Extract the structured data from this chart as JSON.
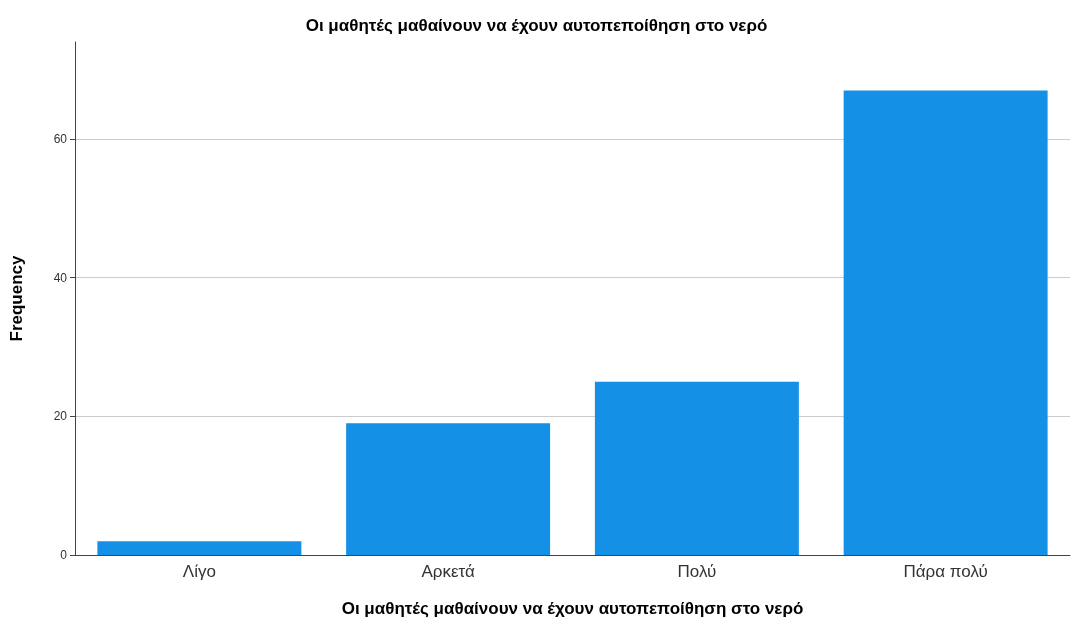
{
  "chart_data": {
    "type": "bar",
    "title": "Οι μαθητές μαθαίνουν να έχουν αυτοπεποίθηση στο νερό",
    "xlabel": "Οι μαθητές μαθαίνουν να έχουν αυτοπεποίθηση στο νερό",
    "ylabel": "Frequency",
    "categories": [
      "Λίγο",
      "Αρκετά",
      "Πολύ",
      "Πάρα πολύ"
    ],
    "values": [
      2,
      19,
      25,
      67
    ],
    "color": "#1491e6",
    "ylim": [
      0,
      74
    ],
    "yticks": [
      0,
      20,
      40,
      60
    ],
    "grid": "y"
  }
}
